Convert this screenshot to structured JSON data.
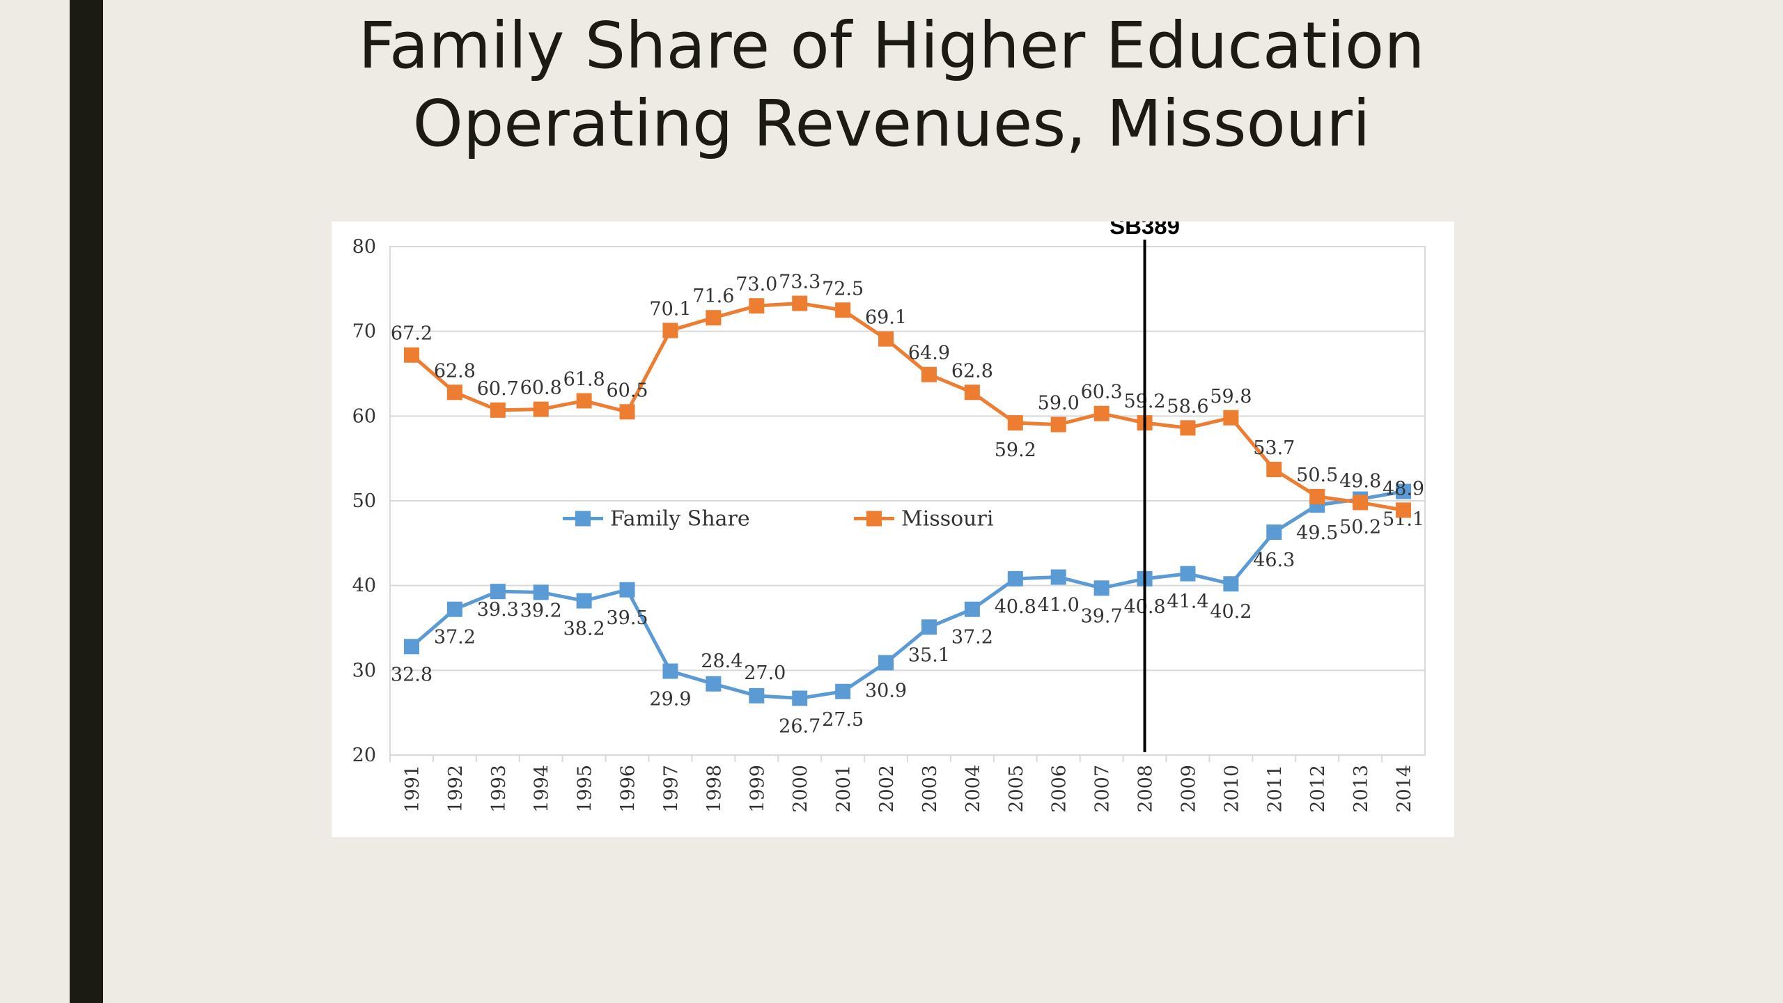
{
  "slide": {
    "title_line1": "Family Share of Higher Education",
    "title_line2": "Operating Revenues, Missouri"
  },
  "chart_data": {
    "type": "line",
    "title": "Family Share of Higher Education Operating Revenues, Missouri",
    "xlabel": "",
    "ylabel": "",
    "ylim": [
      20,
      80
    ],
    "yticks": [
      20,
      30,
      40,
      50,
      60,
      70,
      80
    ],
    "grid": true,
    "legend_placement": "center-left",
    "categories": [
      "1991",
      "1992",
      "1993",
      "1994",
      "1995",
      "1996",
      "1997",
      "1998",
      "1999",
      "2000",
      "2001",
      "2002",
      "2003",
      "2004",
      "2005",
      "2006",
      "2007",
      "2008",
      "2009",
      "2010",
      "2011",
      "2012",
      "2013",
      "2014"
    ],
    "series": [
      {
        "name": "Family Share",
        "color": "#5b9bd5",
        "marker": "square",
        "values": [
          32.8,
          37.2,
          39.3,
          39.2,
          38.2,
          39.5,
          29.9,
          28.4,
          27.0,
          26.7,
          27.5,
          30.9,
          35.1,
          37.2,
          40.8,
          41.0,
          39.7,
          40.8,
          41.4,
          40.2,
          46.3,
          49.5,
          50.2,
          51.1
        ],
        "labels": [
          "32.8",
          "37.2",
          "39.3",
          "39.2",
          "38.2",
          "39.5",
          "29.9",
          "28.4",
          "27.0",
          "26.7",
          "27.5",
          "30.9",
          "35.1",
          "37.2",
          "40.8",
          "41.0",
          "39.7",
          "40.8",
          "41.4",
          "40.2",
          "46.3",
          "49.5",
          "50.2",
          "51.1"
        ]
      },
      {
        "name": "Missouri",
        "color": "#ed7d31",
        "marker": "square",
        "values": [
          67.2,
          62.8,
          60.7,
          60.8,
          61.8,
          60.5,
          70.1,
          71.6,
          73.0,
          73.3,
          72.5,
          69.1,
          64.9,
          62.8,
          59.2,
          59.0,
          60.3,
          59.2,
          58.6,
          59.8,
          53.7,
          50.5,
          49.8,
          48.9
        ],
        "labels": [
          "67.2",
          "62.8",
          "60.7",
          "60.8",
          "61.8",
          "60.5",
          "70.1",
          "71.6",
          "73.0",
          "73.3",
          "72.5",
          "69.1",
          "64.9",
          "62.8",
          "59.2",
          "59.0",
          "60.3",
          "59.2",
          "58.6",
          "59.8",
          "53.7",
          "50.5",
          "49.8",
          "48.9"
        ]
      }
    ],
    "annotations": [
      {
        "text": "SB389",
        "x": "2008"
      }
    ]
  }
}
